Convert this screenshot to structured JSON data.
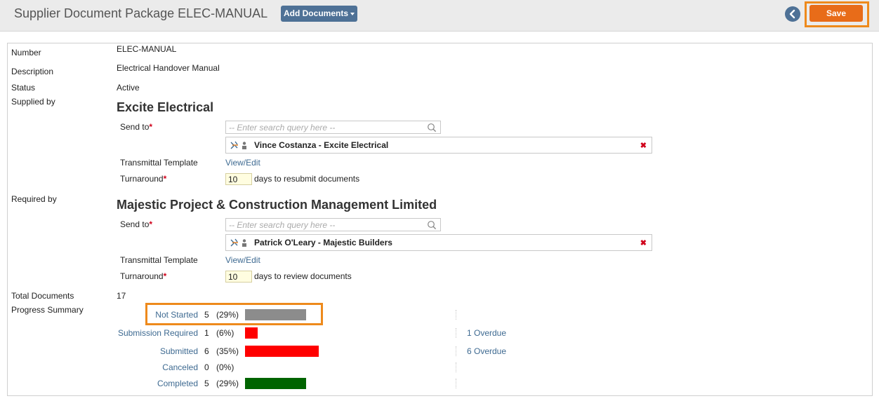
{
  "header": {
    "title": "Supplier Document Package ELEC-MANUAL",
    "add_documents_label": "Add Documents",
    "save_label": "Save"
  },
  "fields": {
    "number_label": "Number",
    "number_value": "ELEC-MANUAL",
    "description_label": "Description",
    "description_value": "Electrical Handover Manual",
    "status_label": "Status",
    "status_value": "Active",
    "supplied_by_label": "Supplied by",
    "required_by_label": "Required by",
    "total_documents_label": "Total Documents",
    "total_documents_value": "17",
    "progress_summary_label": "Progress Summary"
  },
  "supplier": {
    "company": "Excite Electrical",
    "send_to_label": "Send to",
    "required_mark": "*",
    "search_placeholder": "-- Enter search query here --",
    "contact": "Vince Costanza - Excite Electrical",
    "remove": "✖",
    "transmittal_label": "Transmittal Template",
    "transmittal_link": "View/Edit",
    "turnaround_label": "Turnaround",
    "turnaround_value": "10",
    "turnaround_suffix": "days to resubmit documents"
  },
  "requirer": {
    "company": "Majestic Project & Construction Management Limited",
    "send_to_label": "Send to",
    "required_mark": "*",
    "search_placeholder": "-- Enter search query here --",
    "contact": "Patrick O'Leary - Majestic Builders",
    "remove": "✖",
    "transmittal_label": "Transmittal Template",
    "transmittal_link": "View/Edit",
    "turnaround_label": "Turnaround",
    "turnaround_value": "10",
    "turnaround_suffix": "days to review documents"
  },
  "progress": [
    {
      "label": "Not Started",
      "count": "5",
      "pct": "(29%)",
      "fraction": 0.29,
      "color": "#8c8c8c",
      "overdue": ""
    },
    {
      "label": "Submission Required",
      "count": "1",
      "pct": "(6%)",
      "fraction": 0.06,
      "color": "#ff0000",
      "overdue": "1 Overdue"
    },
    {
      "label": "Submitted",
      "count": "6",
      "pct": "(35%)",
      "fraction": 0.35,
      "color": "#ff0000",
      "overdue": "6 Overdue"
    },
    {
      "label": "Canceled",
      "count": "0",
      "pct": "(0%)",
      "fraction": 0.0,
      "color": "#ff0000",
      "overdue": ""
    },
    {
      "label": "Completed",
      "count": "5",
      "pct": "(29%)",
      "fraction": 0.29,
      "color": "#006400",
      "overdue": ""
    }
  ],
  "icons": {
    "back": "chevron-left-icon",
    "search": "search-icon",
    "contact_company": "company-logo-icon",
    "contact_person": "person-icon",
    "remove": "remove-icon"
  }
}
